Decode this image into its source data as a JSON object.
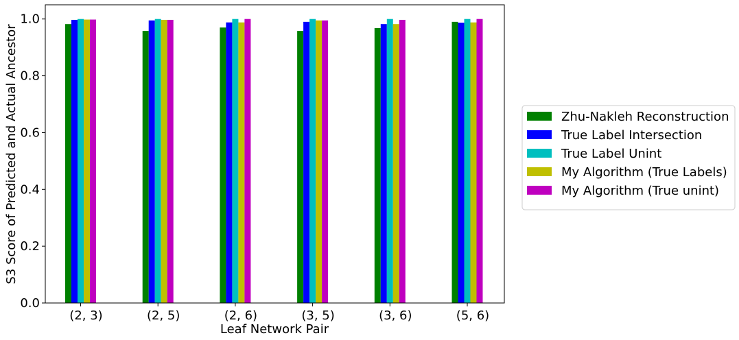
{
  "chart_data": {
    "type": "bar",
    "title": "",
    "xlabel": "Leaf Network Pair",
    "ylabel": "S3 Score of Predicted and Actual Ancestor",
    "ylim": [
      0,
      1.05
    ],
    "yticks": [
      0.0,
      0.2,
      0.4,
      0.6,
      0.8,
      1.0
    ],
    "ytick_labels": [
      "0.0",
      "0.2",
      "0.4",
      "0.6",
      "0.8",
      "1.0"
    ],
    "categories": [
      "(2, 3)",
      "(2, 5)",
      "(2, 6)",
      "(3, 5)",
      "(3, 6)",
      "(5, 6)"
    ],
    "grid": false,
    "legend_position": "right",
    "series": [
      {
        "name": "Zhu-Nakleh Reconstruction",
        "color": "#008000",
        "values": [
          0.982,
          0.958,
          0.97,
          0.958,
          0.968,
          0.99
        ]
      },
      {
        "name": "True Label Intersection",
        "color": "#0000ff",
        "values": [
          0.997,
          0.995,
          0.988,
          0.99,
          0.982,
          0.987
        ]
      },
      {
        "name": "True Label Unint",
        "color": "#00bfbf",
        "values": [
          1.0,
          1.0,
          1.0,
          1.0,
          1.0,
          1.0
        ]
      },
      {
        "name": "My Algorithm (True Labels)",
        "color": "#bfbf00",
        "values": [
          0.998,
          0.997,
          0.988,
          0.995,
          0.982,
          0.988
        ]
      },
      {
        "name": "My Algorithm (True unint)",
        "color": "#bf00bf",
        "values": [
          0.998,
          0.997,
          1.0,
          0.995,
          0.997,
          1.0
        ]
      }
    ]
  }
}
